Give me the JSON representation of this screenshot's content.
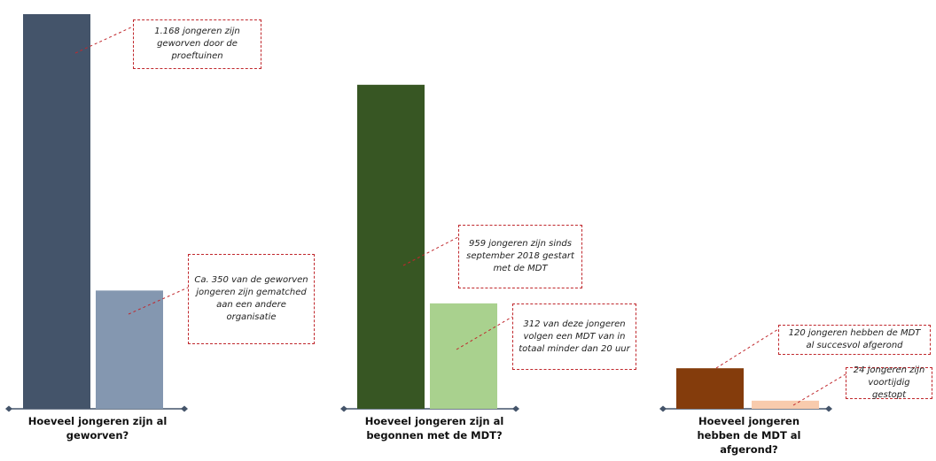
{
  "chart_data": [
    {
      "type": "bar",
      "categories": [
        "Hoeveel jongeren zijn al geworven?"
      ],
      "series": [
        {
          "values": [
            1168
          ],
          "color": "#44546a"
        },
        {
          "values": [
            350
          ],
          "color": "#8497b0"
        }
      ],
      "annotations": [
        "1.168 jongeren zijn geworven door de proeftuinen",
        "Ca. 350 van de geworven jongeren zijn gematched aan een andere organisatie"
      ]
    },
    {
      "type": "bar",
      "categories": [
        "Hoeveel jongeren zijn al begonnen met de MDT?"
      ],
      "series": [
        {
          "values": [
            959
          ],
          "color": "#375623"
        },
        {
          "values": [
            312
          ],
          "color": "#a9d18e"
        }
      ],
      "annotations": [
        "959 jongeren zijn sinds september 2018 gestart met de MDT",
        "312 van deze jongeren volgen een MDT van in totaal minder dan 20 uur"
      ]
    },
    {
      "type": "bar",
      "categories": [
        "Hoeveel jongeren hebben de MDT al afgerond?"
      ],
      "series": [
        {
          "values": [
            120
          ],
          "color": "#843c0c"
        },
        {
          "values": [
            24
          ],
          "color": "#f8cbad"
        }
      ],
      "annotations": [
        "120 jongeren hebben de MDT al succesvol afgerond",
        "24 jongeren zijn voortijdig gestopt"
      ]
    }
  ],
  "colors": {
    "axis": "#44546a",
    "annotation_border": "#c0282d"
  }
}
